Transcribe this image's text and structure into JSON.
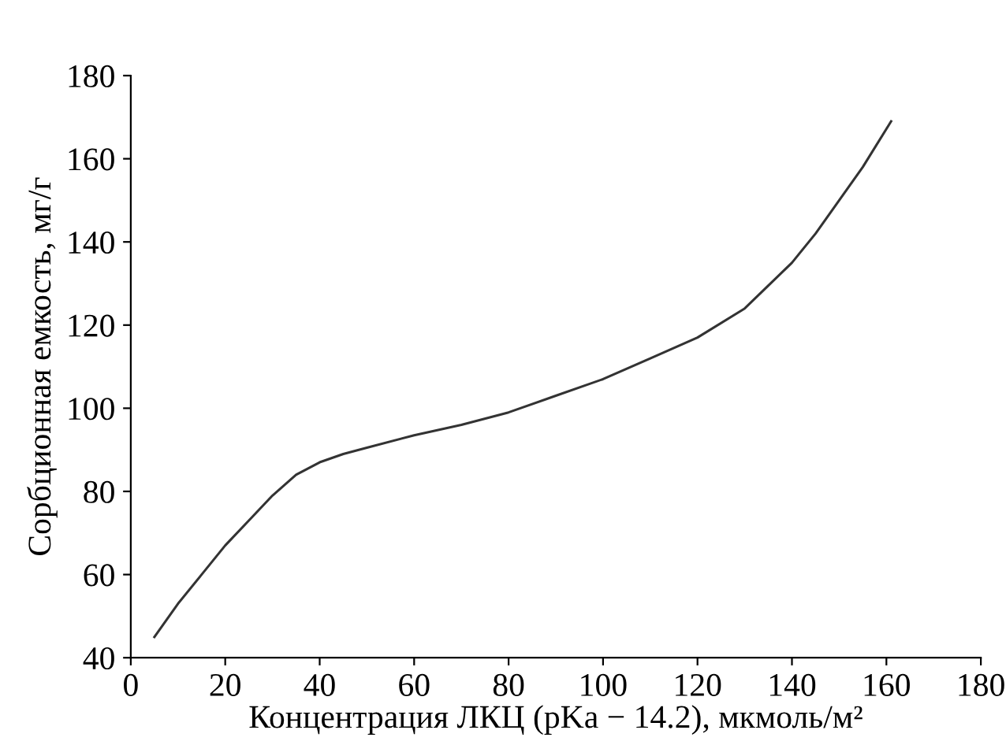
{
  "chart_data": {
    "type": "line",
    "xlabel": "Концентрация ЛКЦ (pKa − 14.2), мкмоль/м²",
    "ylabel": "Сорбционная емкость, мг/г",
    "series": [
      {
        "color": "#333333",
        "x": [
          5,
          10,
          15,
          20,
          25,
          30,
          35,
          40,
          45,
          50,
          60,
          70,
          80,
          90,
          100,
          110,
          120,
          130,
          140,
          145,
          150,
          155,
          161
        ],
        "values": [
          45,
          53,
          60,
          67,
          73,
          79,
          84,
          87,
          89,
          90.5,
          93.5,
          96,
          99,
          103,
          107,
          112,
          117,
          124,
          135,
          142,
          150,
          158,
          169
        ]
      }
    ],
    "xlim": [
      0,
      180
    ],
    "xticks": [
      0,
      20,
      40,
      60,
      80,
      100,
      120,
      140,
      160,
      180
    ],
    "ylim": [
      40,
      180
    ],
    "yticks": [
      40,
      60,
      80,
      100,
      120,
      140,
      160,
      180
    ],
    "grid": false,
    "legend": false,
    "marker": "none",
    "line_style": "solid"
  }
}
